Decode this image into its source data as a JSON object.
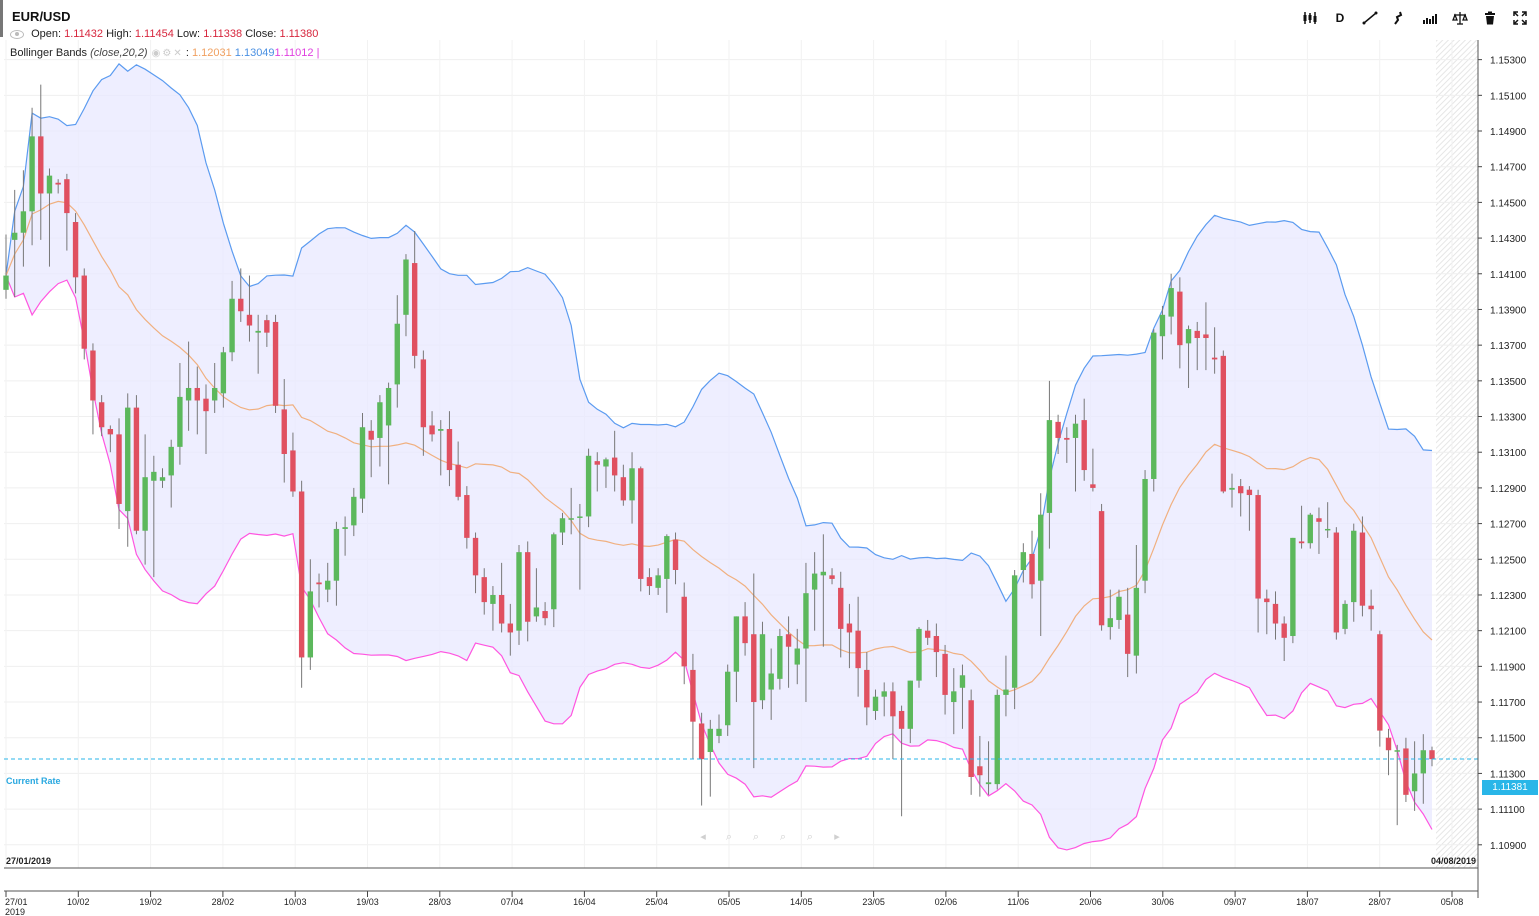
{
  "header": {
    "symbol": "EUR/USD",
    "open_label": "Open:",
    "open": "1.11432",
    "high_label": "High:",
    "high": "1.11454",
    "low_label": "Low:",
    "low": "1.11338",
    "close_label": "Close:",
    "close": "1.11380"
  },
  "indicator": {
    "name": "Bollinger Bands",
    "params": "(close,20,2)",
    "separator": ":",
    "mid": "1.12031",
    "upper": "1.13049",
    "lower": "1.11012",
    "end": "|"
  },
  "toolbar": {
    "timeframe_label": "D",
    "icons": [
      "candles-icon",
      "timeframe-button",
      "draw-line-icon",
      "indicator-icon",
      "chart-type-icon",
      "balance-icon",
      "trash-icon",
      "fullscreen-icon"
    ]
  },
  "current_rate": {
    "label": "Current Rate",
    "value": "1.11381"
  },
  "axis": {
    "start_date": "27/01/2019",
    "end_date": "04/08/2019",
    "year": "2019"
  },
  "colors": {
    "bull": "#5cb85c",
    "bear": "#e05060",
    "upper_band": "#5b9bf0",
    "lower_band": "#ff55e0",
    "middle_band": "#f0b080",
    "band_fill": "#e8e8ff",
    "rate_line": "#29b6e8"
  },
  "chart_data": {
    "type": "candlestick",
    "title": "EUR/USD",
    "ylim": [
      1.1077,
      1.1541
    ],
    "y_ticks": [
      "1.15300",
      "1.15100",
      "1.14900",
      "1.14700",
      "1.14500",
      "1.14300",
      "1.14100",
      "1.13900",
      "1.13700",
      "1.13500",
      "1.13300",
      "1.13100",
      "1.12900",
      "1.12700",
      "1.12500",
      "1.12300",
      "1.12100",
      "1.11900",
      "1.11700",
      "1.11500",
      "1.11300",
      "1.11100",
      "1.10900"
    ],
    "x_ticks": [
      "27/01",
      "10/02",
      "19/02",
      "28/02",
      "10/03",
      "19/03",
      "28/03",
      "07/04",
      "16/04",
      "25/04",
      "05/05",
      "14/05",
      "23/05",
      "02/06",
      "11/06",
      "20/06",
      "30/06",
      "09/07",
      "18/07",
      "28/07",
      "05/08"
    ],
    "bollinger": {
      "period": 20,
      "stddev": 2,
      "middle": 1.12031,
      "upper": 1.13049,
      "lower": 1.11012
    },
    "candles": [
      {
        "o": 1.1401,
        "h": 1.1432,
        "l": 1.1396,
        "c": 1.1409
      },
      {
        "o": 1.1429,
        "h": 1.1457,
        "l": 1.1397,
        "c": 1.1433
      },
      {
        "o": 1.1433,
        "h": 1.1468,
        "l": 1.1414,
        "c": 1.1445
      },
      {
        "o": 1.1445,
        "h": 1.1503,
        "l": 1.1426,
        "c": 1.1487
      },
      {
        "o": 1.1487,
        "h": 1.1516,
        "l": 1.1429,
        "c": 1.1455
      },
      {
        "o": 1.1455,
        "h": 1.1469,
        "l": 1.1414,
        "c": 1.1465
      },
      {
        "o": 1.1461,
        "h": 1.1463,
        "l": 1.1455,
        "c": 1.146
      },
      {
        "o": 1.1463,
        "h": 1.1466,
        "l": 1.1423,
        "c": 1.1444
      },
      {
        "o": 1.1439,
        "h": 1.1444,
        "l": 1.1399,
        "c": 1.1408
      },
      {
        "o": 1.1409,
        "h": 1.1413,
        "l": 1.1362,
        "c": 1.1368
      },
      {
        "o": 1.1367,
        "h": 1.1371,
        "l": 1.132,
        "c": 1.1339
      },
      {
        "o": 1.1338,
        "h": 1.1342,
        "l": 1.1319,
        "c": 1.1324
      },
      {
        "o": 1.1323,
        "h": 1.1325,
        "l": 1.131,
        "c": 1.132
      },
      {
        "o": 1.132,
        "h": 1.1329,
        "l": 1.1267,
        "c": 1.1281
      },
      {
        "o": 1.1277,
        "h": 1.1343,
        "l": 1.1257,
        "c": 1.1335
      },
      {
        "o": 1.1335,
        "h": 1.1342,
        "l": 1.1264,
        "c": 1.1266
      },
      {
        "o": 1.1266,
        "h": 1.132,
        "l": 1.1247,
        "c": 1.1296
      },
      {
        "o": 1.1294,
        "h": 1.1308,
        "l": 1.124,
        "c": 1.1299
      },
      {
        "o": 1.1294,
        "h": 1.1301,
        "l": 1.129,
        "c": 1.1296
      },
      {
        "o": 1.1297,
        "h": 1.1317,
        "l": 1.1279,
        "c": 1.1313
      },
      {
        "o": 1.1313,
        "h": 1.136,
        "l": 1.1303,
        "c": 1.1341
      },
      {
        "o": 1.1339,
        "h": 1.1372,
        "l": 1.1322,
        "c": 1.1346
      },
      {
        "o": 1.1346,
        "h": 1.1358,
        "l": 1.132,
        "c": 1.1339
      },
      {
        "o": 1.134,
        "h": 1.1348,
        "l": 1.1309,
        "c": 1.1333
      },
      {
        "o": 1.1339,
        "h": 1.136,
        "l": 1.1332,
        "c": 1.1346
      },
      {
        "o": 1.1343,
        "h": 1.1369,
        "l": 1.1335,
        "c": 1.1366
      },
      {
        "o": 1.1366,
        "h": 1.1406,
        "l": 1.1361,
        "c": 1.1396
      },
      {
        "o": 1.1396,
        "h": 1.1413,
        "l": 1.1383,
        "c": 1.1389
      },
      {
        "o": 1.1387,
        "h": 1.1409,
        "l": 1.1372,
        "c": 1.1381
      },
      {
        "o": 1.1377,
        "h": 1.1387,
        "l": 1.1354,
        "c": 1.1378
      },
      {
        "o": 1.1384,
        "h": 1.1387,
        "l": 1.1369,
        "c": 1.1377
      },
      {
        "o": 1.1383,
        "h": 1.1387,
        "l": 1.1332,
        "c": 1.1336
      },
      {
        "o": 1.1334,
        "h": 1.1351,
        "l": 1.1293,
        "c": 1.1309
      },
      {
        "o": 1.1311,
        "h": 1.1321,
        "l": 1.1285,
        "c": 1.1288
      },
      {
        "o": 1.1288,
        "h": 1.1294,
        "l": 1.1178,
        "c": 1.1195
      },
      {
        "o": 1.1195,
        "h": 1.125,
        "l": 1.1188,
        "c": 1.1232
      },
      {
        "o": 1.1237,
        "h": 1.1242,
        "l": 1.1223,
        "c": 1.1236
      },
      {
        "o": 1.1233,
        "h": 1.1248,
        "l": 1.1226,
        "c": 1.1238
      },
      {
        "o": 1.1238,
        "h": 1.1271,
        "l": 1.1224,
        "c": 1.1267
      },
      {
        "o": 1.1267,
        "h": 1.1274,
        "l": 1.1252,
        "c": 1.1268
      },
      {
        "o": 1.1269,
        "h": 1.129,
        "l": 1.1263,
        "c": 1.1285
      },
      {
        "o": 1.1284,
        "h": 1.1332,
        "l": 1.1276,
        "c": 1.1324
      },
      {
        "o": 1.1322,
        "h": 1.1328,
        "l": 1.1296,
        "c": 1.1317
      },
      {
        "o": 1.1318,
        "h": 1.1342,
        "l": 1.1302,
        "c": 1.1338
      },
      {
        "o": 1.1325,
        "h": 1.1349,
        "l": 1.1292,
        "c": 1.1346
      },
      {
        "o": 1.1348,
        "h": 1.1398,
        "l": 1.1335,
        "c": 1.1382
      },
      {
        "o": 1.1387,
        "h": 1.1421,
        "l": 1.1375,
        "c": 1.1418
      },
      {
        "o": 1.1416,
        "h": 1.1434,
        "l": 1.1357,
        "c": 1.1364
      },
      {
        "o": 1.1362,
        "h": 1.1367,
        "l": 1.1308,
        "c": 1.1324
      },
      {
        "o": 1.1325,
        "h": 1.1333,
        "l": 1.1316,
        "c": 1.132
      },
      {
        "o": 1.1322,
        "h": 1.1328,
        "l": 1.1297,
        "c": 1.1323
      },
      {
        "o": 1.1323,
        "h": 1.1333,
        "l": 1.1291,
        "c": 1.13
      },
      {
        "o": 1.1303,
        "h": 1.1316,
        "l": 1.1283,
        "c": 1.1285
      },
      {
        "o": 1.1286,
        "h": 1.1291,
        "l": 1.1256,
        "c": 1.1262
      },
      {
        "o": 1.1262,
        "h": 1.1265,
        "l": 1.1231,
        "c": 1.1241
      },
      {
        "o": 1.124,
        "h": 1.1245,
        "l": 1.1219,
        "c": 1.1226
      },
      {
        "o": 1.1225,
        "h": 1.1235,
        "l": 1.121,
        "c": 1.123
      },
      {
        "o": 1.123,
        "h": 1.1248,
        "l": 1.1209,
        "c": 1.1214
      },
      {
        "o": 1.1214,
        "h": 1.1225,
        "l": 1.1196,
        "c": 1.1209
      },
      {
        "o": 1.121,
        "h": 1.1258,
        "l": 1.1202,
        "c": 1.1254
      },
      {
        "o": 1.1254,
        "h": 1.126,
        "l": 1.1204,
        "c": 1.1215
      },
      {
        "o": 1.1218,
        "h": 1.1245,
        "l": 1.1215,
        "c": 1.1223
      },
      {
        "o": 1.1221,
        "h": 1.1226,
        "l": 1.1213,
        "c": 1.1217
      },
      {
        "o": 1.1222,
        "h": 1.1265,
        "l": 1.1212,
        "c": 1.1264
      },
      {
        "o": 1.1265,
        "h": 1.1276,
        "l": 1.1258,
        "c": 1.1273
      },
      {
        "o": 1.1273,
        "h": 1.129,
        "l": 1.1264,
        "c": 1.1273
      },
      {
        "o": 1.1274,
        "h": 1.1281,
        "l": 1.1233,
        "c": 1.1274
      },
      {
        "o": 1.1274,
        "h": 1.1312,
        "l": 1.1268,
        "c": 1.1308
      },
      {
        "o": 1.1305,
        "h": 1.131,
        "l": 1.1288,
        "c": 1.1303
      },
      {
        "o": 1.1302,
        "h": 1.1307,
        "l": 1.129,
        "c": 1.1306
      },
      {
        "o": 1.1307,
        "h": 1.1322,
        "l": 1.1288,
        "c": 1.1297
      },
      {
        "o": 1.1296,
        "h": 1.1303,
        "l": 1.128,
        "c": 1.1283
      },
      {
        "o": 1.1283,
        "h": 1.131,
        "l": 1.127,
        "c": 1.1301
      },
      {
        "o": 1.1301,
        "h": 1.1302,
        "l": 1.1232,
        "c": 1.1239
      },
      {
        "o": 1.124,
        "h": 1.1245,
        "l": 1.123,
        "c": 1.1235
      },
      {
        "o": 1.1234,
        "h": 1.1245,
        "l": 1.123,
        "c": 1.1241
      },
      {
        "o": 1.1239,
        "h": 1.1264,
        "l": 1.122,
        "c": 1.1263
      },
      {
        "o": 1.1261,
        "h": 1.1265,
        "l": 1.1236,
        "c": 1.1244
      },
      {
        "o": 1.1229,
        "h": 1.1237,
        "l": 1.118,
        "c": 1.119
      },
      {
        "o": 1.1188,
        "h": 1.1197,
        "l": 1.1138,
        "c": 1.1159
      },
      {
        "o": 1.1158,
        "h": 1.1164,
        "l": 1.1112,
        "c": 1.1138
      },
      {
        "o": 1.1142,
        "h": 1.116,
        "l": 1.1117,
        "c": 1.1155
      },
      {
        "o": 1.1151,
        "h": 1.1163,
        "l": 1.1147,
        "c": 1.1155
      },
      {
        "o": 1.1157,
        "h": 1.1191,
        "l": 1.1151,
        "c": 1.1187
      },
      {
        "o": 1.1187,
        "h": 1.1218,
        "l": 1.117,
        "c": 1.1218
      },
      {
        "o": 1.1218,
        "h": 1.1226,
        "l": 1.1196,
        "c": 1.1203
      },
      {
        "o": 1.1208,
        "h": 1.1242,
        "l": 1.1133,
        "c": 1.117
      },
      {
        "o": 1.1171,
        "h": 1.1215,
        "l": 1.1166,
        "c": 1.1208
      },
      {
        "o": 1.1177,
        "h": 1.12,
        "l": 1.116,
        "c": 1.1186
      },
      {
        "o": 1.1183,
        "h": 1.1211,
        "l": 1.1177,
        "c": 1.1207
      },
      {
        "o": 1.1208,
        "h": 1.1218,
        "l": 1.1178,
        "c": 1.1201
      },
      {
        "o": 1.1191,
        "h": 1.1211,
        "l": 1.118,
        "c": 1.12
      },
      {
        "o": 1.12,
        "h": 1.1248,
        "l": 1.117,
        "c": 1.1231
      },
      {
        "o": 1.1233,
        "h": 1.1254,
        "l": 1.121,
        "c": 1.1242
      },
      {
        "o": 1.1241,
        "h": 1.1264,
        "l": 1.1201,
        "c": 1.1243
      },
      {
        "o": 1.1241,
        "h": 1.1245,
        "l": 1.1236,
        "c": 1.1239
      },
      {
        "o": 1.1234,
        "h": 1.1243,
        "l": 1.1195,
        "c": 1.1211
      },
      {
        "o": 1.1214,
        "h": 1.1225,
        "l": 1.1189,
        "c": 1.1209
      },
      {
        "o": 1.121,
        "h": 1.1229,
        "l": 1.1173,
        "c": 1.1189
      },
      {
        "o": 1.1188,
        "h": 1.1198,
        "l": 1.1157,
        "c": 1.1167
      },
      {
        "o": 1.1165,
        "h": 1.1177,
        "l": 1.116,
        "c": 1.1173
      },
      {
        "o": 1.1173,
        "h": 1.1181,
        "l": 1.1162,
        "c": 1.1176
      },
      {
        "o": 1.1176,
        "h": 1.1181,
        "l": 1.1138,
        "c": 1.1162
      },
      {
        "o": 1.1165,
        "h": 1.1168,
        "l": 1.1106,
        "c": 1.1155
      },
      {
        "o": 1.1155,
        "h": 1.1182,
        "l": 1.1147,
        "c": 1.1182
      },
      {
        "o": 1.1182,
        "h": 1.1212,
        "l": 1.1178,
        "c": 1.1211
      },
      {
        "o": 1.121,
        "h": 1.1216,
        "l": 1.1202,
        "c": 1.1206
      },
      {
        "o": 1.1207,
        "h": 1.1214,
        "l": 1.1184,
        "c": 1.1198
      },
      {
        "o": 1.1197,
        "h": 1.1202,
        "l": 1.1163,
        "c": 1.1174
      },
      {
        "o": 1.117,
        "h": 1.1189,
        "l": 1.1152,
        "c": 1.1176
      },
      {
        "o": 1.1178,
        "h": 1.1191,
        "l": 1.1155,
        "c": 1.1185
      },
      {
        "o": 1.1171,
        "h": 1.1177,
        "l": 1.1118,
        "c": 1.1128
      },
      {
        "o": 1.1134,
        "h": 1.1151,
        "l": 1.1117,
        "c": 1.1129
      },
      {
        "o": 1.1124,
        "h": 1.1148,
        "l": 1.1118,
        "c": 1.1125
      },
      {
        "o": 1.1124,
        "h": 1.1177,
        "l": 1.1121,
        "c": 1.1174
      },
      {
        "o": 1.1174,
        "h": 1.1196,
        "l": 1.1162,
        "c": 1.1177
      },
      {
        "o": 1.1178,
        "h": 1.1244,
        "l": 1.1166,
        "c": 1.1241
      },
      {
        "o": 1.1244,
        "h": 1.1259,
        "l": 1.1237,
        "c": 1.1254
      },
      {
        "o": 1.1253,
        "h": 1.1266,
        "l": 1.1228,
        "c": 1.1236
      },
      {
        "o": 1.1238,
        "h": 1.1287,
        "l": 1.1207,
        "c": 1.1275
      },
      {
        "o": 1.1276,
        "h": 1.135,
        "l": 1.1256,
        "c": 1.1328
      },
      {
        "o": 1.1327,
        "h": 1.1331,
        "l": 1.1309,
        "c": 1.1318
      },
      {
        "o": 1.1318,
        "h": 1.1324,
        "l": 1.1304,
        "c": 1.1317
      },
      {
        "o": 1.1318,
        "h": 1.1331,
        "l": 1.1288,
        "c": 1.1326
      },
      {
        "o": 1.1328,
        "h": 1.134,
        "l": 1.1294,
        "c": 1.13
      },
      {
        "o": 1.1292,
        "h": 1.1312,
        "l": 1.1288,
        "c": 1.129
      },
      {
        "o": 1.1277,
        "h": 1.1281,
        "l": 1.121,
        "c": 1.1213
      },
      {
        "o": 1.1212,
        "h": 1.1233,
        "l": 1.1205,
        "c": 1.1217
      },
      {
        "o": 1.1216,
        "h": 1.1233,
        "l": 1.1211,
        "c": 1.1229
      },
      {
        "o": 1.1219,
        "h": 1.1234,
        "l": 1.1184,
        "c": 1.1197
      },
      {
        "o": 1.1196,
        "h": 1.1258,
        "l": 1.1186,
        "c": 1.1234
      },
      {
        "o": 1.1238,
        "h": 1.13,
        "l": 1.1231,
        "c": 1.1295
      },
      {
        "o": 1.1295,
        "h": 1.1379,
        "l": 1.1288,
        "c": 1.1377
      },
      {
        "o": 1.1375,
        "h": 1.1392,
        "l": 1.1362,
        "c": 1.1387
      },
      {
        "o": 1.1386,
        "h": 1.141,
        "l": 1.1376,
        "c": 1.1402
      },
      {
        "o": 1.14,
        "h": 1.1408,
        "l": 1.1357,
        "c": 1.137
      },
      {
        "o": 1.1371,
        "h": 1.1381,
        "l": 1.1346,
        "c": 1.1379
      },
      {
        "o": 1.1378,
        "h": 1.1383,
        "l": 1.1356,
        "c": 1.1374
      },
      {
        "o": 1.1376,
        "h": 1.1394,
        "l": 1.1356,
        "c": 1.1374
      },
      {
        "o": 1.1363,
        "h": 1.138,
        "l": 1.1354,
        "c": 1.1362
      },
      {
        "o": 1.1364,
        "h": 1.1367,
        "l": 1.1287,
        "c": 1.1288
      },
      {
        "o": 1.1289,
        "h": 1.1298,
        "l": 1.1279,
        "c": 1.129
      },
      {
        "o": 1.1291,
        "h": 1.1295,
        "l": 1.1274,
        "c": 1.1287
      },
      {
        "o": 1.1289,
        "h": 1.1291,
        "l": 1.1266,
        "c": 1.1286
      },
      {
        "o": 1.1286,
        "h": 1.1289,
        "l": 1.1209,
        "c": 1.1228
      },
      {
        "o": 1.1228,
        "h": 1.1233,
        "l": 1.1208,
        "c": 1.1226
      },
      {
        "o": 1.1225,
        "h": 1.1232,
        "l": 1.1205,
        "c": 1.1214
      },
      {
        "o": 1.1214,
        "h": 1.1218,
        "l": 1.1193,
        "c": 1.1206
      },
      {
        "o": 1.1207,
        "h": 1.1262,
        "l": 1.1203,
        "c": 1.1262
      },
      {
        "o": 1.126,
        "h": 1.128,
        "l": 1.1256,
        "c": 1.1259
      },
      {
        "o": 1.1259,
        "h": 1.1276,
        "l": 1.1256,
        "c": 1.1275
      },
      {
        "o": 1.1273,
        "h": 1.1279,
        "l": 1.1253,
        "c": 1.1271
      },
      {
        "o": 1.1267,
        "h": 1.1282,
        "l": 1.1262,
        "c": 1.1267
      },
      {
        "o": 1.1265,
        "h": 1.1268,
        "l": 1.1205,
        "c": 1.1209
      },
      {
        "o": 1.1211,
        "h": 1.1227,
        "l": 1.1208,
        "c": 1.1225
      },
      {
        "o": 1.1226,
        "h": 1.127,
        "l": 1.1215,
        "c": 1.1266
      },
      {
        "o": 1.1265,
        "h": 1.1274,
        "l": 1.1218,
        "c": 1.1224
      },
      {
        "o": 1.1224,
        "h": 1.1233,
        "l": 1.121,
        "c": 1.1222
      },
      {
        "o": 1.1208,
        "h": 1.121,
        "l": 1.1145,
        "c": 1.1154
      },
      {
        "o": 1.115,
        "h": 1.1155,
        "l": 1.1129,
        "c": 1.1143
      },
      {
        "o": 1.1143,
        "h": 1.1146,
        "l": 1.1101,
        "c": 1.1143
      },
      {
        "o": 1.1144,
        "h": 1.115,
        "l": 1.1114,
        "c": 1.1118
      },
      {
        "o": 1.112,
        "h": 1.1148,
        "l": 1.1109,
        "c": 1.113
      },
      {
        "o": 1.113,
        "h": 1.1152,
        "l": 1.1113,
        "c": 1.1143
      },
      {
        "o": 1.1143,
        "h": 1.1145,
        "l": 1.1134,
        "c": 1.1138
      }
    ]
  }
}
